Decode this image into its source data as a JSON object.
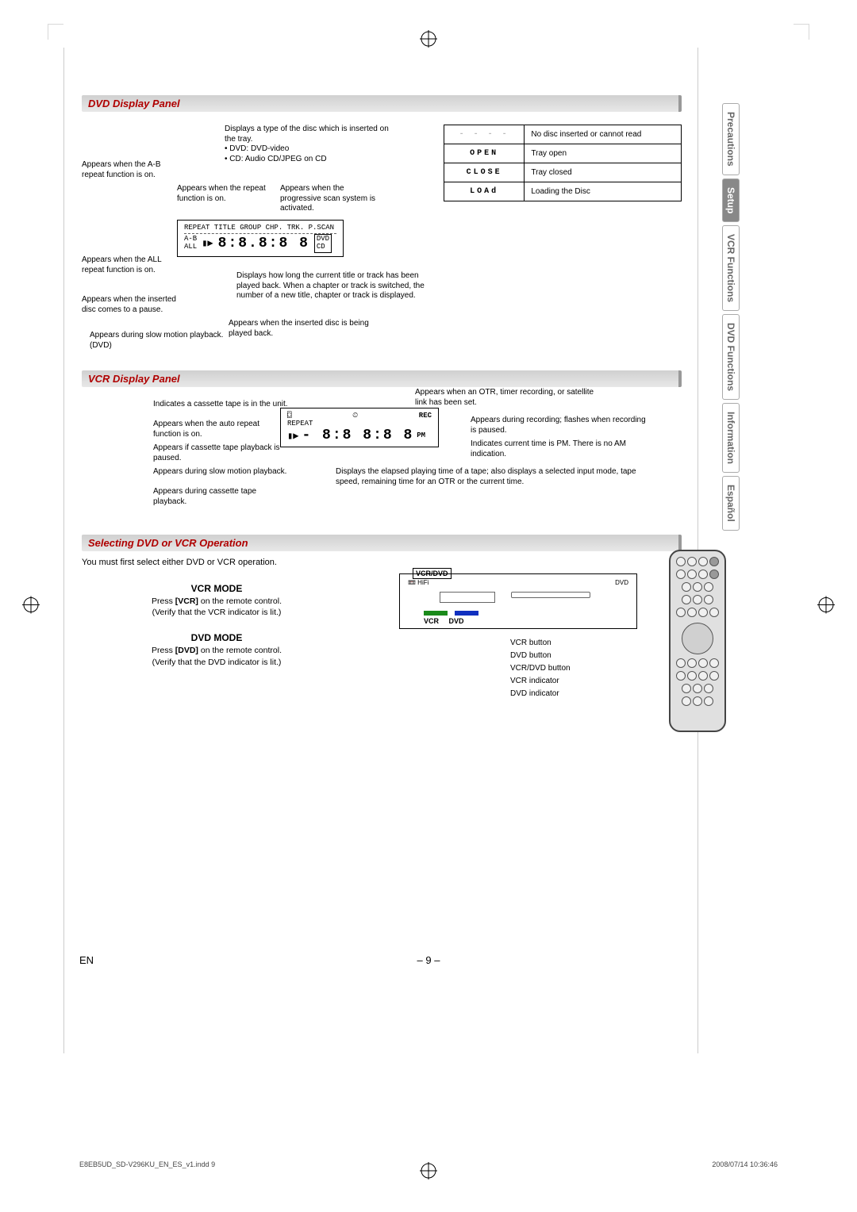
{
  "reg_marks": true,
  "side_tabs": {
    "items": [
      {
        "label": "Precautions",
        "active": false
      },
      {
        "label": "Setup",
        "active": true
      },
      {
        "label": "VCR Functions",
        "active": false
      },
      {
        "label": "DVD Functions",
        "active": false
      },
      {
        "label": "Information",
        "active": false
      },
      {
        "label": "Español",
        "active": false
      }
    ],
    "active_bg": "#888888",
    "active_fg": "#ffffff",
    "inactive_fg": "#666666"
  },
  "sections": {
    "dvd": {
      "title": "DVD Display Panel",
      "display_sample": {
        "top_row": "REPEAT  TITLE GROUP  CHP. TRK.  P.SCAN",
        "left_col": "A-B\nALL",
        "main": "8:8.8:8 8",
        "right_labels": "DVD\nCD",
        "icons": "▮▶"
      },
      "callouts": [
        {
          "text": "Displays a type of the disc which is inserted on the tray.\n• DVD: DVD-video\n• CD: Audio CD/JPEG on CD"
        },
        {
          "text": "Appears when the A-B repeat function is on."
        },
        {
          "text": "Appears when the repeat function is on."
        },
        {
          "text": "Appears when the progressive scan system is activated."
        },
        {
          "text": "Appears when the ALL repeat function is on."
        },
        {
          "text": "Displays how long the current title or track has been played back. When a chapter or track is switched, the number of a new title, chapter or track is displayed."
        },
        {
          "text": "Appears when the inserted disc comes to a pause."
        },
        {
          "text": "Appears when the inserted disc is being played back."
        },
        {
          "text": "Appears during slow motion playback. (DVD)"
        }
      ],
      "status_rows": [
        {
          "seg": "- - - -",
          "desc": "No disc inserted or cannot read",
          "dim": true
        },
        {
          "seg": "OPEN",
          "desc": "Tray open",
          "dim": false
        },
        {
          "seg": "CLOSE",
          "desc": "Tray closed",
          "dim": false
        },
        {
          "seg": "LOAd",
          "desc": "Loading the Disc",
          "dim": false
        }
      ]
    },
    "vcr": {
      "title": "VCR Display Panel",
      "display_sample": {
        "top_row": "⊙   REC",
        "repeat": "REPEAT",
        "main": "- 8:8 8:8 8",
        "pm": "PM",
        "icons": "▮▶"
      },
      "callouts_left": [
        {
          "text": "Indicates a cassette tape is in the unit."
        },
        {
          "text": "Appears when the auto repeat function is on."
        },
        {
          "text": "Appears if cassette tape playback is paused."
        },
        {
          "text": "Appears during slow motion playback."
        },
        {
          "text": "Appears during cassette tape playback."
        }
      ],
      "callouts_right": [
        {
          "text": "Appears when an OTR, timer recording, or satellite link has been set."
        },
        {
          "text": "Appears during recording; flashes when recording is paused."
        },
        {
          "text": "Indicates current time is PM. There is no AM indication."
        },
        {
          "text": "Displays the elapsed playing time of a tape; also displays a selected input mode, tape speed, remaining time for an OTR or the current time."
        }
      ]
    },
    "select": {
      "title": "Selecting DVD or VCR Operation",
      "intro": "You must first select either DVD or VCR operation.",
      "vcr_mode": {
        "heading": "VCR MODE",
        "line1": "Press [VCR] on the remote control.",
        "line2": "(Verify that the VCR indicator is lit.)"
      },
      "dvd_mode": {
        "heading": "DVD MODE",
        "line1": "Press [DVD] on the remote control.",
        "line2": "(Verify that the DVD indicator is lit.)"
      },
      "device_labels": {
        "vcrdvd": "VCR/DVD",
        "vcr": "VCR",
        "dvd": "DVD",
        "callouts": [
          "VCR button",
          "DVD button",
          "VCR/DVD button",
          "VCR indicator",
          "DVD indicator"
        ]
      }
    }
  },
  "footer": {
    "lang": "EN",
    "page": "– 9 –",
    "file": "E8EB5UD_SD-V296KU_EN_ES_v1.indd   9",
    "timestamp": "2008/07/14   10:36:46"
  },
  "colors": {
    "heading_fg": "#b00000",
    "bar_bg_start": "#d0d0d0",
    "bar_bg_end": "#e8e8e8",
    "vcr_ind": "#1a8a1a",
    "dvd_ind": "#1030c0"
  }
}
